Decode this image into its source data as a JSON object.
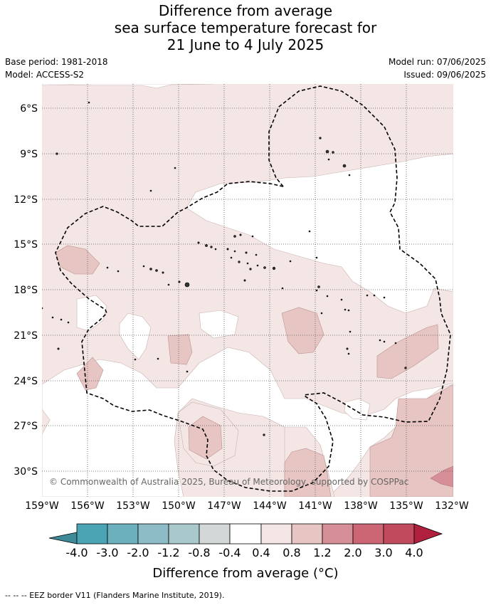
{
  "title": {
    "line1": "Difference from average",
    "line2": "sea surface temperature forecast for",
    "line3": "21 June to 4 July 2025"
  },
  "meta": {
    "base_period": "Base period: 1981-2018",
    "model": "Model: ACCESS-S2",
    "model_run": "Model run: 07/06/2025",
    "issued": "Issued: 09/06/2025"
  },
  "map": {
    "lon_ticks": [
      "159°W",
      "156°W",
      "153°W",
      "150°W",
      "147°W",
      "144°W",
      "141°W",
      "138°W",
      "135°W",
      "132°W"
    ],
    "lat_ticks": [
      "6°S",
      "9°S",
      "12°S",
      "15°S",
      "18°S",
      "21°S",
      "24°S",
      "27°S",
      "30°S"
    ],
    "copyright": "© Commonwealth of Australia 2025, Bureau of Meteorology, supported by COSPPac"
  },
  "colorbar": {
    "title": "Difference from average (",
    "title_unit": "°C)",
    "labels": [
      "-4.0",
      "-3.0",
      "-2.0",
      "-1.2",
      "-0.8",
      "-0.4",
      "0.4",
      "0.8",
      "1.2",
      "2.0",
      "3.0",
      "4.0"
    ],
    "colors": [
      "#3e8a97",
      "#4aa4b4",
      "#6cb0bd",
      "#8dbcc6",
      "#a9c8cc",
      "#d2d7d8",
      "#ffffff",
      "#f3e6e5",
      "#e7c5c2",
      "#d68f96",
      "#cc6674",
      "#c14a5c",
      "#b01f3d"
    ]
  },
  "legend": {
    "text": "-- -- -- EEZ border V11 (Flanders Marine Institute, 2019)."
  }
}
